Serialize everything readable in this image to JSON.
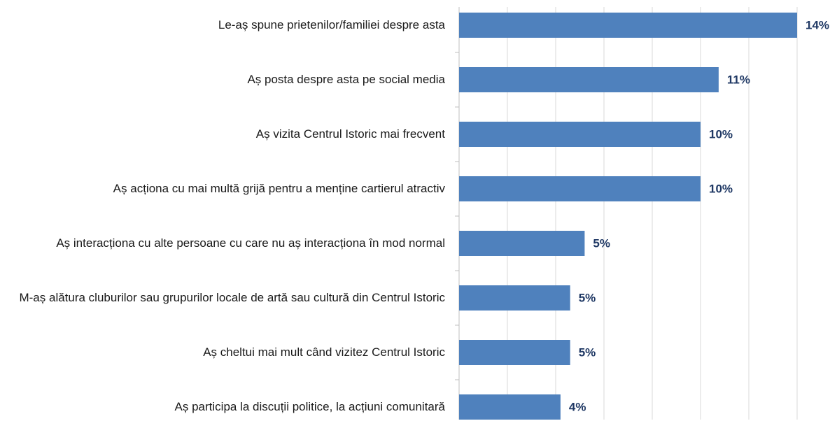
{
  "chart_data": {
    "type": "barh",
    "categories": [
      "Le-aș spune prietenilor/familiei despre asta",
      "Aș posta despre asta pe social media",
      "Aș vizita Centrul Istoric mai frecvent",
      "Aș acționa cu mai multă grijă pentru a menține cartierul atractiv",
      "Aș interacționa cu alte persoane cu care nu aș interacționa în mod normal",
      "M-aș alătura cluburilor sau grupurilor locale de artă sau cultură din Centrul Istoric",
      "Aș cheltui mai mult când vizitez Centrul Istoric",
      "Aș participa la discuții politice, la acțiuni comunitară"
    ],
    "values": [
      14,
      10.75,
      10,
      10,
      5.2,
      4.6,
      4.6,
      4.2
    ],
    "value_labels": [
      "14%",
      "11%",
      "10%",
      "10%",
      "5%",
      "5%",
      "5%",
      "4%"
    ],
    "color": "#4f81bd",
    "xlim": [
      0,
      14
    ],
    "xticks": [
      0,
      2,
      4,
      6,
      8,
      10,
      12,
      14
    ],
    "grid": true
  }
}
